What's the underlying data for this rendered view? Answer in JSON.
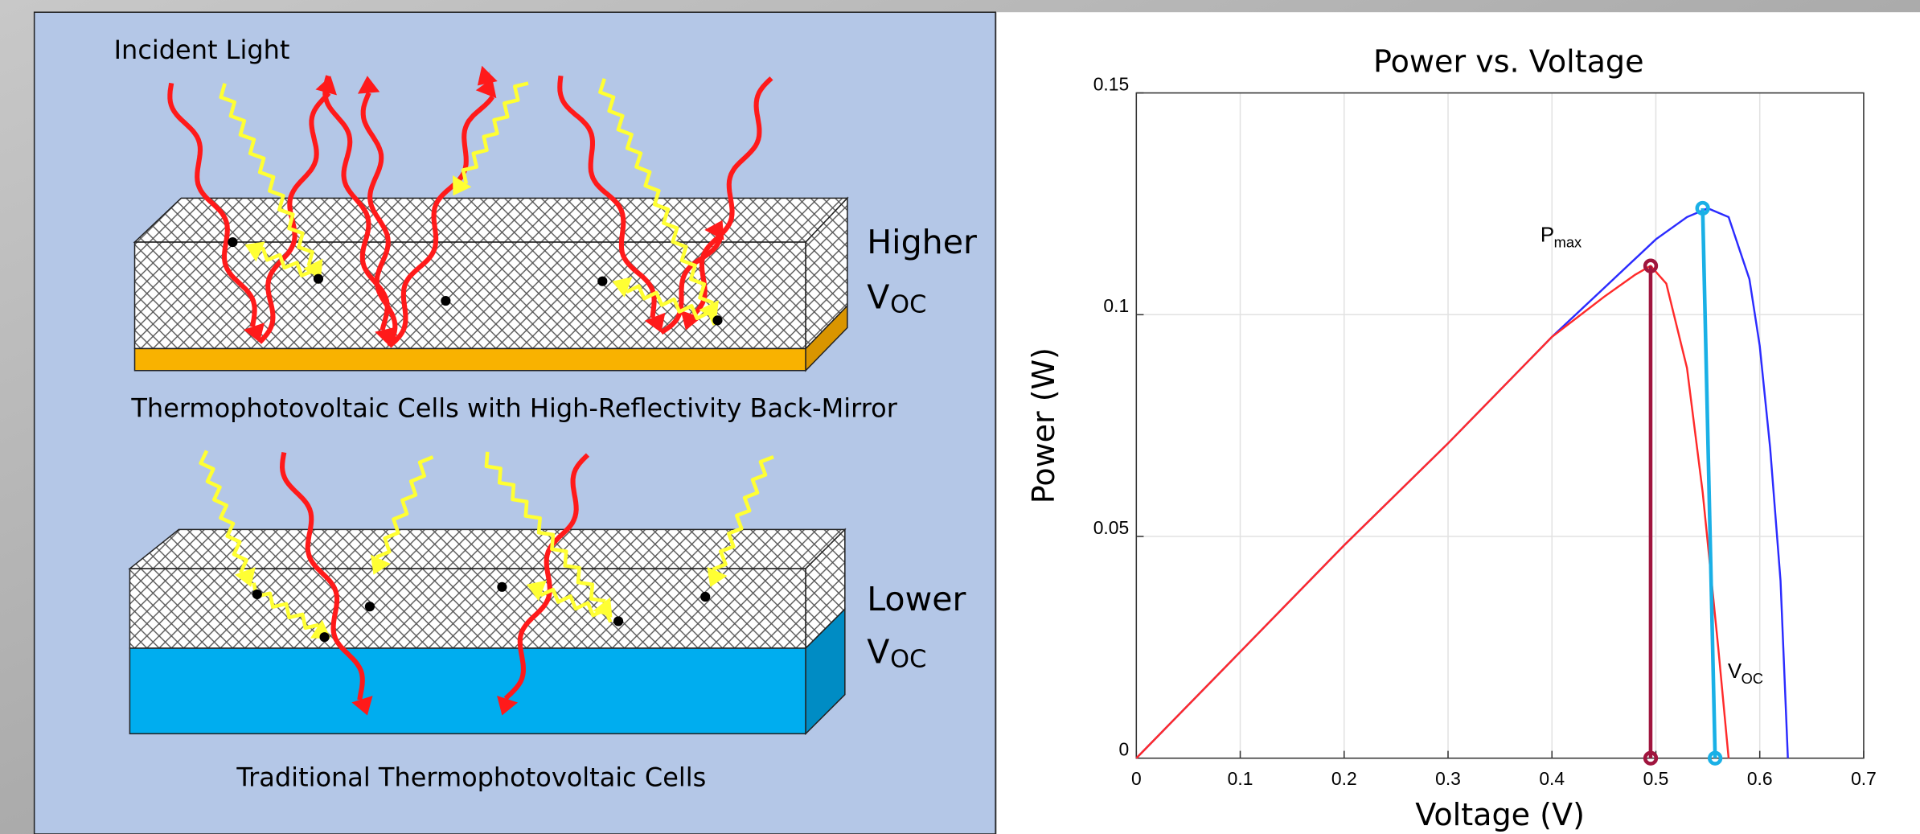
{
  "diagram": {
    "incident_label": "Incident Light",
    "top_caption": "Thermophotovoltaic Cells with High-Reflectivity Back-Mirror",
    "top_side": {
      "word": "Higher",
      "symbol": "V",
      "sub": "OC"
    },
    "bottom_caption": "Traditional Thermophotovoltaic Cells",
    "bottom_side": {
      "word": "Lower",
      "symbol": "V",
      "sub": "OC"
    }
  },
  "chart_data": {
    "type": "line",
    "title": "Power vs. Voltage",
    "x_label": "Voltage (V)",
    "y_label": "Power (W)",
    "xlim": [
      0,
      0.7
    ],
    "ylim": [
      0,
      0.15
    ],
    "xticks": [
      0,
      0.1,
      0.2,
      0.3,
      0.4,
      0.5,
      0.6,
      0.7
    ],
    "yticks": [
      0,
      0.05,
      0.1,
      0.15
    ],
    "grid": true,
    "series": [
      {
        "color": "#2b2bff",
        "x": [
          0,
          0.1,
          0.2,
          0.3,
          0.4,
          0.45,
          0.5,
          0.53,
          0.55,
          0.57,
          0.59,
          0.6,
          0.61,
          0.62,
          0.627
        ],
        "values": [
          0,
          0.024,
          0.048,
          0.071,
          0.095,
          0.106,
          0.117,
          0.122,
          0.124,
          0.122,
          0.108,
          0.093,
          0.07,
          0.04,
          0
        ]
      },
      {
        "color": "#ff2a2a",
        "x": [
          0,
          0.1,
          0.2,
          0.3,
          0.4,
          0.45,
          0.48,
          0.495,
          0.51,
          0.53,
          0.545,
          0.56,
          0.57
        ],
        "values": [
          0,
          0.024,
          0.048,
          0.071,
          0.095,
          0.104,
          0.109,
          0.111,
          0.107,
          0.088,
          0.06,
          0.025,
          0
        ]
      },
      {
        "color": "#a0153e",
        "markers": true,
        "x": [
          0.495,
          0.495
        ],
        "values": [
          0.111,
          0
        ]
      },
      {
        "color": "#1ab0e6",
        "markers": true,
        "x": [
          0.545,
          0.557
        ],
        "values": [
          0.124,
          0
        ]
      }
    ],
    "annotations": [
      {
        "text": "P",
        "sub": "max"
      },
      {
        "text": "V",
        "sub": "OC"
      }
    ]
  }
}
